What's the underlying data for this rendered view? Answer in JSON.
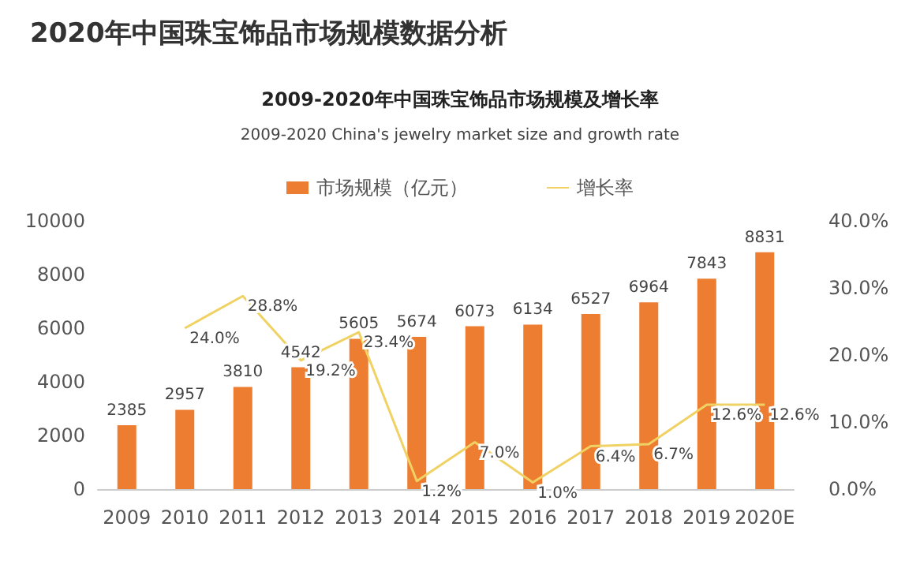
{
  "chart_data": {
    "type": "bar",
    "title": "2020年中国珠宝饰品市场规模数据分析",
    "subtitle": "2009-2020年中国珠宝饰品市场规模及增长率",
    "annotations": [
      "2009-2020 China's jewelry market size and growth rate"
    ],
    "categories": [
      "2009",
      "2010",
      "2011",
      "2012",
      "2013",
      "2014",
      "2015",
      "2016",
      "2017",
      "2018",
      "2019",
      "2020E"
    ],
    "series": [
      {
        "name": "市场规模（亿元）",
        "type": "bar",
        "color": "#ed7d31",
        "values": [
          2385,
          2957,
          3810,
          4542,
          5605,
          5674,
          6073,
          6134,
          6527,
          6964,
          7843,
          8831
        ],
        "value_labels": [
          "2385",
          "2957",
          "3810",
          "4542",
          "5605",
          "5674",
          "6073",
          "6134",
          "6527",
          "6964",
          "7843",
          "8831"
        ]
      },
      {
        "name": "增长率",
        "type": "line",
        "axis": "y2",
        "color": "#f0d264",
        "values": [
          null,
          24.0,
          28.8,
          19.2,
          23.4,
          1.2,
          7.0,
          1.0,
          6.4,
          6.7,
          12.6,
          12.6
        ],
        "value_labels": [
          null,
          "24.0%",
          "28.8%",
          "19.2%",
          "23.4%",
          "1.2%",
          "7.0%",
          "1.0%",
          "6.4%",
          "6.7%",
          "12.6%",
          "12.6%"
        ]
      }
    ],
    "ylim": [
      0,
      10000
    ],
    "yticks": [
      0,
      2000,
      4000,
      6000,
      8000,
      10000
    ],
    "y2lim": [
      0,
      40
    ],
    "y2ticks": [
      {
        "value": 0,
        "label": "0.0%"
      },
      {
        "value": 10,
        "label": "10.0%"
      },
      {
        "value": 20,
        "label": "20.0%"
      },
      {
        "value": 30,
        "label": "30.0%"
      },
      {
        "value": 40,
        "label": "40.0%"
      }
    ],
    "grid": false,
    "legend": "top",
    "marker": "none",
    "line_style": "solid"
  }
}
